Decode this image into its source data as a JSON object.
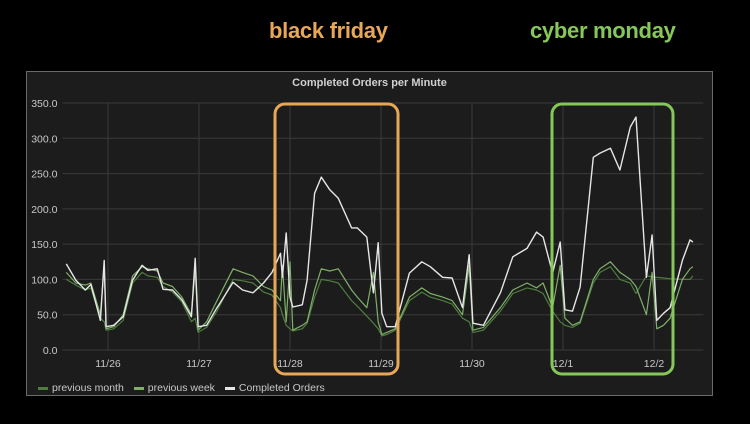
{
  "annotations": [
    {
      "label": "black friday",
      "color": "#e8a756"
    },
    {
      "label": "cyber monday",
      "color": "#86c75a"
    }
  ],
  "chart_data": {
    "type": "line",
    "title": "Completed Orders per Minute",
    "ylim": [
      0,
      350
    ],
    "yticks": [
      "0.0",
      "50.0",
      "100.0",
      "150.0",
      "200.0",
      "250.0",
      "300.0",
      "350.0"
    ],
    "xticks": [
      "11/26",
      "11/27",
      "11/28",
      "11/29",
      "11/30",
      "12/1",
      "12/2"
    ],
    "xlim": [
      "11/25 12:00",
      "12/2 13:00"
    ],
    "grid": true,
    "legend_position": "bottom-left",
    "x": [
      "11/25 13:00",
      "11/25 15:30",
      "11/25 18:00",
      "11/25 19:30",
      "11/25 22:00",
      "11/25 23:00",
      "11/25 23:30",
      "11/26 01:30",
      "11/26 04:00",
      "11/26 06:30",
      "11/26 09:00",
      "11/26 10:30",
      "11/26 13:00",
      "11/26 14:30",
      "11/26 17:00",
      "11/26 19:30",
      "11/26 22:00",
      "11/26 23:00",
      "11/26 23:45",
      "11/27 02:00",
      "11/27 04:45",
      "11/27 09:00",
      "11/27 11:30",
      "11/27 14:15",
      "11/27 17:00",
      "11/27 19:15",
      "11/27 21:30",
      "11/27 22:00",
      "11/27 23:00",
      "11/28 00:00",
      "11/28 00:45",
      "11/28 03:15",
      "11/28 04:30",
      "11/28 06:30",
      "11/28 08:15",
      "11/28 10:30",
      "11/28 12:45",
      "11/28 16:15",
      "11/28 17:45",
      "11/28 20:15",
      "11/28 22:00",
      "11/28 23:15",
      "11/29 00:15",
      "11/29 01:30",
      "11/29 03:45",
      "11/29 07:30",
      "11/29 10:45",
      "11/29 13:00",
      "11/29 16:15",
      "11/29 18:45",
      "11/29 21:30",
      "11/29 23:15",
      "11/30 00:15",
      "11/30 03:00",
      "11/30 07:30",
      "11/30 10:45",
      "11/30 14:30",
      "11/30 17:00",
      "11/30 18:45",
      "11/30 21:15",
      "11/30 23:15",
      "12/1 00:30",
      "12/1 02:30",
      "12/1 04:30",
      "12/1 08:00",
      "12/1 09:45",
      "12/1 12:30",
      "12/1 15:00",
      "12/1 17:45",
      "12/1 19:15",
      "12/1 22:00",
      "12/1 23:30",
      "12/2 00:45",
      "12/2 02:30",
      "12/2 04:15",
      "12/2 07:30",
      "12/2 09:30",
      "12/2 10:15"
    ],
    "series": [
      {
        "name": "previous month",
        "color": "#4f7d3f",
        "values": [
          100,
          92,
          85,
          88,
          45,
          40,
          28,
          30,
          42,
          95,
          110,
          105,
          103,
          90,
          82,
          68,
          40,
          45,
          25,
          32,
          55,
          100,
          98,
          95,
          82,
          78,
          60,
          50,
          35,
          30,
          27,
          30,
          38,
          75,
          100,
          98,
          95,
          70,
          62,
          48,
          38,
          30,
          20,
          22,
          28,
          70,
          82,
          75,
          70,
          65,
          45,
          40,
          25,
          28,
          55,
          80,
          88,
          85,
          80,
          55,
          40,
          35,
          32,
          38,
          95,
          110,
          118,
          100,
          95,
          80,
          105,
          104,
          103,
          102,
          101,
          100,
          100,
          105
        ]
      },
      {
        "name": "previous week",
        "color": "#7fb06a",
        "values": [
          110,
          95,
          92,
          95,
          50,
          118,
          30,
          33,
          50,
          105,
          118,
          115,
          112,
          95,
          90,
          75,
          50,
          115,
          28,
          40,
          70,
          115,
          110,
          105,
          90,
          85,
          70,
          120,
          40,
          125,
          28,
          35,
          40,
          85,
          115,
          112,
          115,
          85,
          75,
          60,
          110,
          40,
          22,
          25,
          30,
          75,
          88,
          80,
          75,
          70,
          50,
          120,
          28,
          32,
          60,
          85,
          95,
          88,
          95,
          60,
          120,
          45,
          35,
          40,
          100,
          115,
          125,
          110,
          100,
          90,
          50,
          110,
          30,
          35,
          45,
          100,
          115,
          118
        ]
      },
      {
        "name": "Completed Orders",
        "color": "#e6e6e6",
        "values": [
          122,
          99,
          85,
          93,
          42,
          127,
          33,
          35,
          47,
          99,
          120,
          113,
          115,
          86,
          85,
          71,
          47,
          130,
          33,
          35,
          60,
          96,
          85,
          81,
          95,
          110,
          137,
          103,
          166,
          75,
          61,
          64,
          99,
          222,
          245,
          227,
          215,
          173,
          173,
          160,
          81,
          152,
          52,
          33,
          33,
          109,
          125,
          118,
          103,
          102,
          60,
          135,
          38,
          35,
          81,
          132,
          144,
          167,
          160,
          109,
          153,
          57,
          55,
          89,
          273,
          279,
          286,
          255,
          316,
          330,
          103,
          163,
          42,
          52,
          60,
          127,
          156,
          153
        ]
      }
    ]
  }
}
